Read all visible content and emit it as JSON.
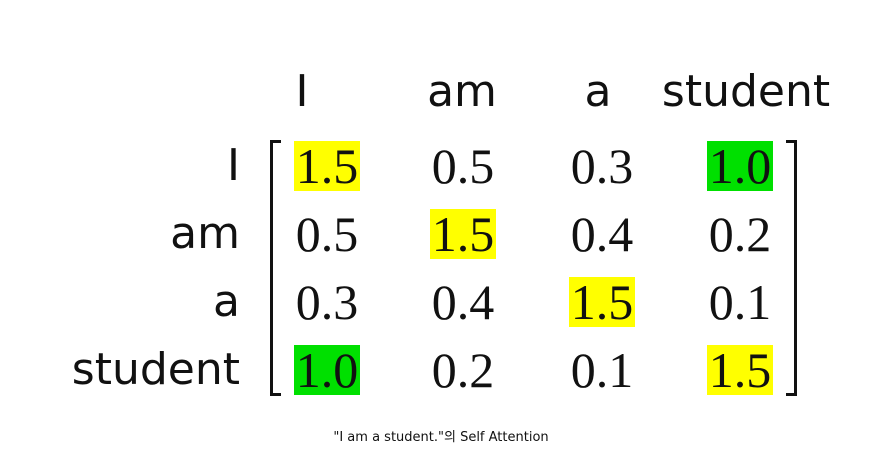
{
  "matrix": {
    "column_labels": [
      "I",
      "am",
      "a",
      "student"
    ],
    "row_labels": [
      "I",
      "am",
      "a",
      "student"
    ],
    "rows": [
      [
        "1.5",
        "0.5",
        "0.3",
        "1.0"
      ],
      [
        "0.5",
        "1.5",
        "0.4",
        "0.2"
      ],
      [
        "0.3",
        "0.4",
        "1.5",
        "0.1"
      ],
      [
        "1.0",
        "0.2",
        "0.1",
        "1.5"
      ]
    ],
    "highlights": [
      [
        "yellow",
        "none",
        "none",
        "green"
      ],
      [
        "none",
        "yellow",
        "none",
        "none"
      ],
      [
        "none",
        "none",
        "yellow",
        "none"
      ],
      [
        "green",
        "none",
        "none",
        "yellow"
      ]
    ],
    "highlight_colors": {
      "yellow": "#ffff00",
      "green": "#00e000"
    }
  },
  "caption": "\"I am a student.\"의 Self Attention"
}
